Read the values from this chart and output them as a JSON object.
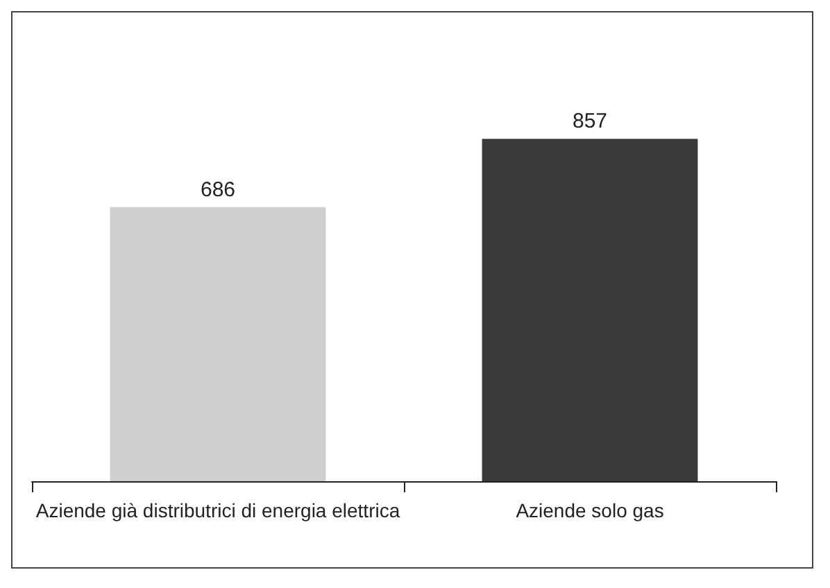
{
  "chart_data": {
    "type": "bar",
    "categories": [
      "Aziende già distributrici di energia elettrica",
      "Aziende solo gas"
    ],
    "values": [
      686,
      857
    ],
    "colors": [
      "#cfcfcf",
      "#3a3a3a"
    ],
    "data_labels": true
  }
}
